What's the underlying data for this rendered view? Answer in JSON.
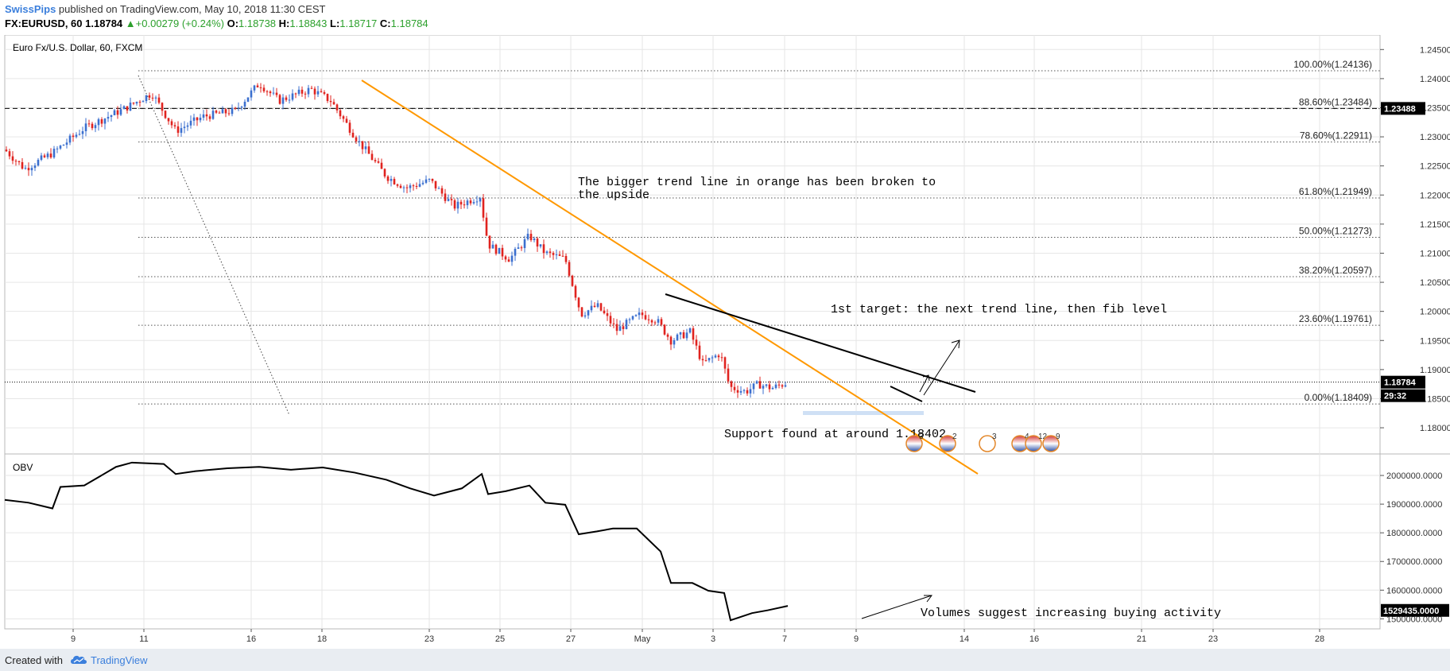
{
  "header": {
    "author": "SwissPips",
    "published_text": " published on TradingView.com, May 10, 2018 11:30 CEST",
    "symbol": "FX:EURUSD, 60",
    "last": "1.18784",
    "change": "+0.00279 (+0.24%)",
    "o_label": "O:",
    "o_value": "1.18738",
    "h_label": "H:",
    "h_value": "1.18843",
    "l_label": "L:",
    "l_value": "1.18717",
    "c_label": "C:",
    "c_value": "1.18784"
  },
  "footer": {
    "created_with": "Created with",
    "brand": "TradingView"
  },
  "colors": {
    "up_candle": "#3b6fcf",
    "down_candle": "#e0231f",
    "trendline_orange": "#ff9800",
    "trendline_black": "#000000",
    "grid": "#e6e6e6",
    "axis_label_bg": "#000000"
  },
  "chart_data": [
    {
      "type": "candlestick",
      "title": "Euro Fx/U.S. Dollar, 60, FXCM",
      "ylim": [
        1.1755,
        1.2475
      ],
      "y_ticks": [
        "1.24500",
        "1.24000",
        "1.23500",
        "1.23000",
        "1.22500",
        "1.22000",
        "1.21500",
        "1.21000",
        "1.20500",
        "1.20000",
        "1.19500",
        "1.19000",
        "1.18500",
        "1.18000"
      ],
      "x_ticks": [
        "9",
        "11",
        "16",
        "18",
        "23",
        "25",
        "27",
        "May",
        "3",
        "7",
        "9",
        "14",
        "16",
        "21",
        "23",
        "28"
      ],
      "price_path": [
        [
          0,
          1.2278
        ],
        [
          25,
          1.2245
        ],
        [
          60,
          1.2272
        ],
        [
          100,
          1.2315
        ],
        [
          150,
          1.2348
        ],
        [
          185,
          1.2375
        ],
        [
          215,
          1.231
        ],
        [
          250,
          1.2335
        ],
        [
          290,
          1.2345
        ],
        [
          320,
          1.2392
        ],
        [
          345,
          1.2362
        ],
        [
          385,
          1.2382
        ],
        [
          410,
          1.2362
        ],
        [
          445,
          1.2292
        ],
        [
          480,
          1.2232
        ],
        [
          505,
          1.2212
        ],
        [
          535,
          1.2225
        ],
        [
          565,
          1.218
        ],
        [
          598,
          1.2198
        ],
        [
          608,
          1.2115
        ],
        [
          635,
          1.209
        ],
        [
          660,
          1.213
        ],
        [
          680,
          1.21
        ],
        [
          705,
          1.209
        ],
        [
          725,
          1.1995
        ],
        [
          745,
          1.201
        ],
        [
          770,
          1.1968
        ],
        [
          800,
          1.1995
        ],
        [
          820,
          1.1985
        ],
        [
          838,
          1.195
        ],
        [
          862,
          1.1965
        ],
        [
          878,
          1.191
        ],
        [
          900,
          1.1928
        ],
        [
          912,
          1.187
        ],
        [
          932,
          1.1862
        ],
        [
          948,
          1.1875
        ],
        [
          965,
          1.1868
        ],
        [
          985,
          1.1878
        ]
      ],
      "current_price": "1.18784",
      "countdown": "29:32",
      "dashed_level": "1.23488",
      "fibonacci": [
        {
          "label": "100.00%(1.24136)",
          "price": 1.24136
        },
        {
          "label": "88.60%(1.23484)",
          "price": 1.23484
        },
        {
          "label": "78.60%(1.22911)",
          "price": 1.22911
        },
        {
          "label": "61.80%(1.21949)",
          "price": 1.21949
        },
        {
          "label": "50.00%(1.21273)",
          "price": 1.21273
        },
        {
          "label": "38.20%(1.20597)",
          "price": 1.20597
        },
        {
          "label": "23.60%(1.19761)",
          "price": 1.19761
        },
        {
          "label": "0.00%(1.18409)",
          "price": 1.18409
        }
      ],
      "annotations": [
        "The bigger trend line in orange has been broken to",
        "the upside",
        "1st target: the next trend line, then fib level",
        "Support found at around 1.18402"
      ],
      "event_badges": [
        "3",
        "2",
        "3",
        "4",
        "12",
        "9"
      ]
    },
    {
      "type": "line",
      "title": "OBV",
      "ylim": [
        1465000,
        2075000
      ],
      "y_ticks": [
        "2000000.0000",
        "1900000.0000",
        "1800000.0000",
        "1700000.0000",
        "1600000.0000",
        "1500000.0000"
      ],
      "current_value": "1529435.0000",
      "values": [
        [
          0,
          1915000
        ],
        [
          30,
          1905000
        ],
        [
          60,
          1885000
        ],
        [
          70,
          1960000
        ],
        [
          100,
          1965000
        ],
        [
          140,
          2030000
        ],
        [
          160,
          2045000
        ],
        [
          200,
          2040000
        ],
        [
          215,
          2005000
        ],
        [
          240,
          2015000
        ],
        [
          280,
          2025000
        ],
        [
          320,
          2030000
        ],
        [
          360,
          2020000
        ],
        [
          400,
          2028000
        ],
        [
          440,
          2010000
        ],
        [
          480,
          1985000
        ],
        [
          510,
          1955000
        ],
        [
          540,
          1930000
        ],
        [
          575,
          1955000
        ],
        [
          600,
          2005000
        ],
        [
          608,
          1935000
        ],
        [
          630,
          1945000
        ],
        [
          660,
          1965000
        ],
        [
          680,
          1905000
        ],
        [
          705,
          1898000
        ],
        [
          722,
          1795000
        ],
        [
          745,
          1805000
        ],
        [
          765,
          1815000
        ],
        [
          795,
          1815000
        ],
        [
          825,
          1735000
        ],
        [
          838,
          1625000
        ],
        [
          865,
          1625000
        ],
        [
          885,
          1598000
        ],
        [
          905,
          1590000
        ],
        [
          913,
          1495000
        ],
        [
          940,
          1520000
        ],
        [
          960,
          1530000
        ],
        [
          985,
          1545000
        ]
      ],
      "annotation": "Volumes suggest increasing buying activity"
    }
  ]
}
